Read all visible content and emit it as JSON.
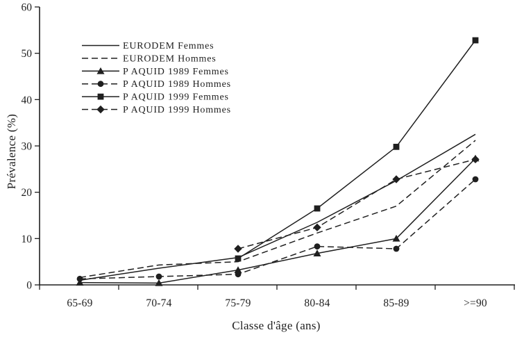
{
  "figure": {
    "background": "#ffffff",
    "line_color": "#1f1f1f"
  },
  "chart_data": {
    "type": "line",
    "title": "",
    "xlabel": "Classe d'âge (ans)",
    "ylabel": "Prévalence (%)",
    "ylim": [
      0,
      60
    ],
    "ytick_step": 10,
    "ytick_labels": [
      "0",
      "10",
      "20",
      "30",
      "40",
      "50",
      "60"
    ],
    "categories": [
      "65-69",
      "70-74",
      "75-79",
      "80-84",
      "85-89",
      ">=90"
    ],
    "grid": false,
    "legend_position": "upper-left",
    "series": [
      {
        "name": "EURODEM Femmes",
        "line": "solid",
        "marker": "none",
        "values": [
          1.0,
          3.6,
          5.9,
          13.5,
          22.5,
          32.5
        ]
      },
      {
        "name": "EURODEM Hommes",
        "line": "dashed",
        "marker": "none",
        "values": [
          1.6,
          4.3,
          5.0,
          11.2,
          17.0,
          31.2
        ]
      },
      {
        "name": "P AQUID 1989 Femmes",
        "line": "solid",
        "marker": "triangle",
        "values": [
          0.5,
          0.4,
          3.2,
          6.8,
          10.0,
          27.3
        ]
      },
      {
        "name": "P AQUID 1989 Hommes",
        "line": "dashed",
        "marker": "circle",
        "values": [
          1.3,
          1.8,
          2.3,
          8.3,
          7.8,
          22.8
        ]
      },
      {
        "name": "P AQUID 1999 Femmes",
        "line": "solid",
        "marker": "square",
        "values": [
          null,
          null,
          5.7,
          16.5,
          29.8,
          52.8
        ]
      },
      {
        "name": "P AQUID 1999 Hommes",
        "line": "dashed",
        "marker": "diamond",
        "values": [
          null,
          null,
          7.8,
          12.4,
          22.8,
          27.1
        ]
      }
    ]
  }
}
